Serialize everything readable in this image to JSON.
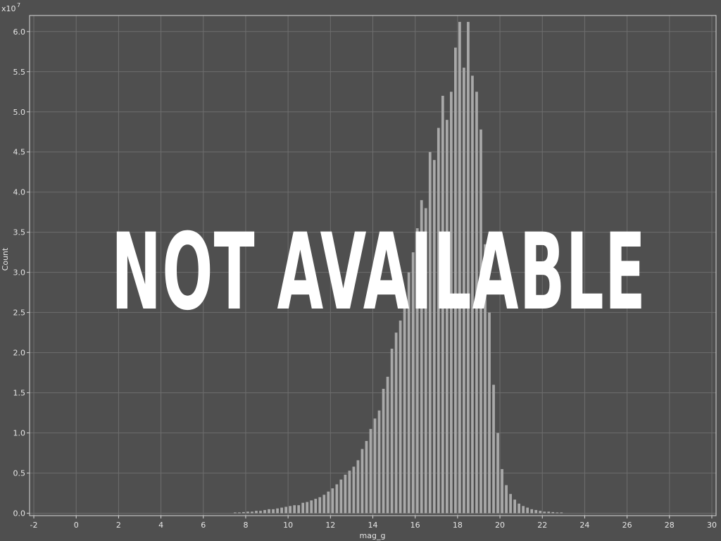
{
  "chart_data": {
    "type": "bar",
    "xlabel": "mag_g",
    "ylabel": "Count",
    "y_multiplier_base": "x10",
    "y_multiplier_exp": "7",
    "xlim": [
      -2.2,
      30.2
    ],
    "ylim": [
      -0.03,
      6.2
    ],
    "x_ticks": [
      -2,
      0,
      2,
      4,
      6,
      8,
      10,
      12,
      14,
      16,
      18,
      20,
      22,
      24,
      26,
      28,
      30
    ],
    "y_ticks": [
      0.0,
      0.5,
      1.0,
      1.5,
      2.0,
      2.5,
      3.0,
      3.5,
      4.0,
      4.5,
      5.0,
      5.5,
      6.0
    ],
    "y_tick_labels": [
      "0.0",
      "0.5",
      "1.0",
      "1.5",
      "2.0",
      "2.5",
      "3.0",
      "3.5",
      "4.0",
      "4.5",
      "5.0",
      "5.5",
      "6.0"
    ],
    "grid": true,
    "bin_width": 0.2,
    "overlay_text": "NOT AVAILABLE",
    "bins": [
      {
        "x": 7.5,
        "y": 0.01
      },
      {
        "x": 7.7,
        "y": 0.01
      },
      {
        "x": 7.9,
        "y": 0.015
      },
      {
        "x": 8.1,
        "y": 0.02
      },
      {
        "x": 8.3,
        "y": 0.02
      },
      {
        "x": 8.5,
        "y": 0.03
      },
      {
        "x": 8.7,
        "y": 0.03
      },
      {
        "x": 8.9,
        "y": 0.04
      },
      {
        "x": 9.1,
        "y": 0.05
      },
      {
        "x": 9.3,
        "y": 0.05
      },
      {
        "x": 9.5,
        "y": 0.06
      },
      {
        "x": 9.7,
        "y": 0.07
      },
      {
        "x": 9.9,
        "y": 0.08
      },
      {
        "x": 10.1,
        "y": 0.09
      },
      {
        "x": 10.3,
        "y": 0.1
      },
      {
        "x": 10.5,
        "y": 0.1
      },
      {
        "x": 10.7,
        "y": 0.13
      },
      {
        "x": 10.9,
        "y": 0.14
      },
      {
        "x": 11.1,
        "y": 0.16
      },
      {
        "x": 11.3,
        "y": 0.18
      },
      {
        "x": 11.5,
        "y": 0.2
      },
      {
        "x": 11.7,
        "y": 0.23
      },
      {
        "x": 11.9,
        "y": 0.27
      },
      {
        "x": 12.1,
        "y": 0.31
      },
      {
        "x": 12.3,
        "y": 0.36
      },
      {
        "x": 12.5,
        "y": 0.42
      },
      {
        "x": 12.7,
        "y": 0.48
      },
      {
        "x": 12.9,
        "y": 0.53
      },
      {
        "x": 13.1,
        "y": 0.58
      },
      {
        "x": 13.3,
        "y": 0.66
      },
      {
        "x": 13.5,
        "y": 0.8
      },
      {
        "x": 13.7,
        "y": 0.9
      },
      {
        "x": 13.9,
        "y": 1.05
      },
      {
        "x": 14.1,
        "y": 1.18
      },
      {
        "x": 14.3,
        "y": 1.28
      },
      {
        "x": 14.5,
        "y": 1.55
      },
      {
        "x": 14.7,
        "y": 1.7
      },
      {
        "x": 14.9,
        "y": 2.05
      },
      {
        "x": 15.1,
        "y": 2.25
      },
      {
        "x": 15.3,
        "y": 2.4
      },
      {
        "x": 15.5,
        "y": 2.75
      },
      {
        "x": 15.7,
        "y": 3.0
      },
      {
        "x": 15.9,
        "y": 3.25
      },
      {
        "x": 16.1,
        "y": 3.55
      },
      {
        "x": 16.3,
        "y": 3.9
      },
      {
        "x": 16.5,
        "y": 3.8
      },
      {
        "x": 16.7,
        "y": 4.5
      },
      {
        "x": 16.9,
        "y": 4.4
      },
      {
        "x": 17.1,
        "y": 4.8
      },
      {
        "x": 17.3,
        "y": 5.2
      },
      {
        "x": 17.5,
        "y": 4.9
      },
      {
        "x": 17.7,
        "y": 5.25
      },
      {
        "x": 17.9,
        "y": 5.8
      },
      {
        "x": 18.1,
        "y": 6.12
      },
      {
        "x": 18.3,
        "y": 5.55
      },
      {
        "x": 18.5,
        "y": 6.12
      },
      {
        "x": 18.7,
        "y": 5.45
      },
      {
        "x": 18.9,
        "y": 5.25
      },
      {
        "x": 19.1,
        "y": 4.78
      },
      {
        "x": 19.3,
        "y": 3.35
      },
      {
        "x": 19.5,
        "y": 2.5
      },
      {
        "x": 19.7,
        "y": 1.6
      },
      {
        "x": 19.9,
        "y": 1.0
      },
      {
        "x": 20.1,
        "y": 0.55
      },
      {
        "x": 20.3,
        "y": 0.35
      },
      {
        "x": 20.5,
        "y": 0.24
      },
      {
        "x": 20.7,
        "y": 0.17
      },
      {
        "x": 20.9,
        "y": 0.12
      },
      {
        "x": 21.1,
        "y": 0.09
      },
      {
        "x": 21.3,
        "y": 0.07
      },
      {
        "x": 21.5,
        "y": 0.05
      },
      {
        "x": 21.7,
        "y": 0.04
      },
      {
        "x": 21.9,
        "y": 0.03
      },
      {
        "x": 22.1,
        "y": 0.02
      },
      {
        "x": 22.3,
        "y": 0.02
      },
      {
        "x": 22.5,
        "y": 0.015
      },
      {
        "x": 22.7,
        "y": 0.01
      },
      {
        "x": 22.9,
        "y": 0.01
      }
    ]
  }
}
